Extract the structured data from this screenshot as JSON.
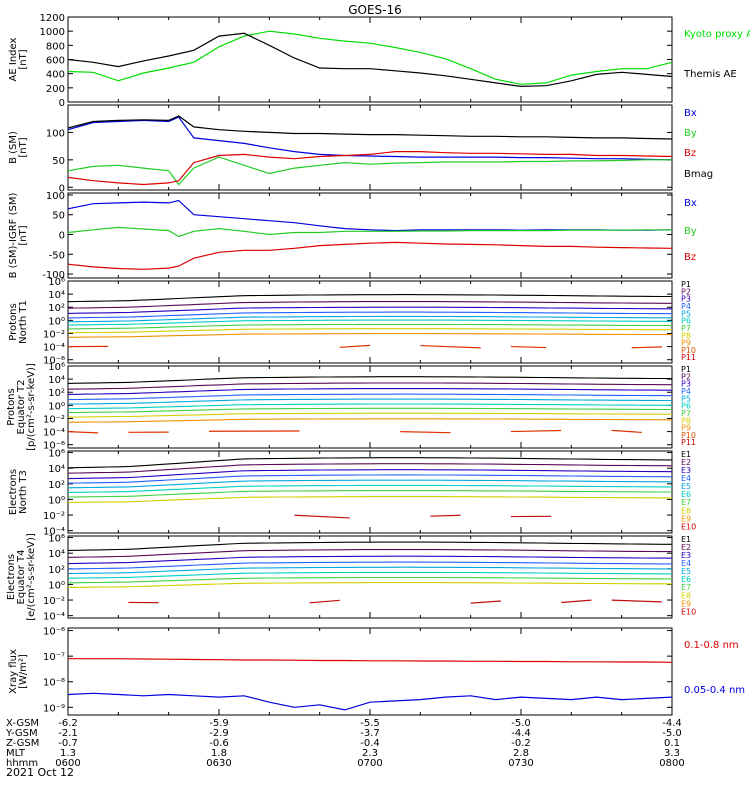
{
  "title": "GOES-16",
  "date_label": "2021 Oct 12",
  "colors": {
    "black": "#000000",
    "green": "#22cc22",
    "blue": "#0000dd",
    "red": "#dd0000",
    "orange": "#e07000",
    "ae_proxy": "#00dd00",
    "xray_long": "#dd0000",
    "xray_short": "#0000dd"
  },
  "orbit": {
    "rows": [
      {
        "label": "X-GSM",
        "values": [
          "-6.2",
          "-5.9",
          "-5.5",
          "-5.0",
          "-4.4"
        ]
      },
      {
        "label": "Y-GSM",
        "values": [
          "-2.1",
          "-2.9",
          "-3.7",
          "-4.4",
          "-5.0"
        ]
      },
      {
        "label": "Z-GSM",
        "values": [
          "-0.7",
          "-0.6",
          "-0.4",
          "-0.2",
          "0.1"
        ]
      },
      {
        "label": "MLT",
        "values": [
          "1.3",
          "1.8",
          "2.3",
          "2.8",
          "3.3"
        ]
      },
      {
        "label": "hhmm",
        "values": [
          "0600",
          "0630",
          "0700",
          "0730",
          "0800"
        ]
      }
    ]
  },
  "chart_data": [
    {
      "id": "ae",
      "type": "line",
      "ylabel": [
        "AE Index",
        "[nT]"
      ],
      "ylim": [
        0,
        1200
      ],
      "yscale": "linear",
      "yticks": [
        0,
        200,
        400,
        600,
        800,
        1000,
        1200
      ],
      "ytick_labels": [
        "0",
        "200",
        "400",
        "600",
        "800",
        "1000",
        "1200"
      ],
      "x": [
        0,
        5,
        10,
        15,
        20,
        25,
        30,
        35,
        40,
        45,
        50,
        55,
        60,
        65,
        70,
        75,
        80,
        85,
        90,
        95,
        100,
        105,
        110,
        115,
        120
      ],
      "series": [
        {
          "name": "Kyoto proxy AE",
          "color_key": "ae_proxy",
          "values": [
            430,
            420,
            300,
            410,
            480,
            560,
            780,
            930,
            1000,
            960,
            900,
            860,
            830,
            770,
            700,
            610,
            470,
            320,
            250,
            270,
            380,
            430,
            470,
            470,
            560
          ]
        },
        {
          "name": "Themis AE",
          "color_key": "black",
          "values": [
            600,
            560,
            500,
            580,
            650,
            730,
            930,
            970,
            800,
            620,
            480,
            470,
            470,
            440,
            410,
            370,
            320,
            270,
            220,
            230,
            300,
            390,
            420,
            390,
            360
          ]
        }
      ],
      "legend": [
        {
          "text": "Kyoto proxy AE",
          "color_key": "ae_proxy"
        },
        {
          "text": "Themis AE",
          "color_key": "black"
        }
      ]
    },
    {
      "id": "bsm",
      "type": "line",
      "ylabel": [
        "B (SM)",
        "[nT]"
      ],
      "ylim": [
        -5,
        150
      ],
      "yscale": "linear",
      "yticks": [
        0,
        50,
        100
      ],
      "ytick_labels": [
        "0",
        "50",
        "100"
      ],
      "x": [
        0,
        5,
        10,
        15,
        20,
        22,
        25,
        30,
        35,
        40,
        45,
        50,
        55,
        60,
        65,
        70,
        75,
        80,
        85,
        90,
        95,
        100,
        105,
        110,
        115,
        120
      ],
      "series": [
        {
          "name": "Bx",
          "color_key": "blue",
          "values": [
            105,
            118,
            120,
            122,
            120,
            128,
            90,
            85,
            80,
            72,
            65,
            60,
            58,
            57,
            56,
            55,
            55,
            55,
            55,
            54,
            54,
            53,
            52,
            52,
            51,
            50
          ]
        },
        {
          "name": "By",
          "color_key": "green",
          "values": [
            30,
            38,
            40,
            35,
            30,
            5,
            35,
            55,
            40,
            25,
            35,
            40,
            45,
            42,
            44,
            45,
            46,
            46,
            46,
            47,
            47,
            48,
            48,
            49,
            50,
            50
          ]
        },
        {
          "name": "Bz",
          "color_key": "red",
          "values": [
            18,
            12,
            8,
            5,
            8,
            12,
            45,
            58,
            60,
            55,
            52,
            56,
            58,
            60,
            65,
            65,
            63,
            62,
            62,
            61,
            60,
            60,
            58,
            58,
            57,
            56
          ]
        },
        {
          "name": "Bmag",
          "color_key": "black",
          "values": [
            108,
            120,
            122,
            123,
            122,
            130,
            110,
            105,
            102,
            100,
            98,
            98,
            97,
            96,
            96,
            95,
            94,
            93,
            93,
            92,
            92,
            91,
            90,
            90,
            89,
            88
          ]
        }
      ],
      "legend": [
        {
          "text": "Bx",
          "color_key": "blue"
        },
        {
          "text": "By",
          "color_key": "green"
        },
        {
          "text": "Bz",
          "color_key": "red"
        },
        {
          "text": "Bmag",
          "color_key": "black"
        }
      ]
    },
    {
      "id": "bigrf",
      "type": "line",
      "ylabel": [
        "B (SM)-IGRF (SM)",
        "[nT]"
      ],
      "ylim": [
        -110,
        105
      ],
      "yscale": "linear",
      "yticks": [
        -100,
        -50,
        0,
        50,
        100
      ],
      "ytick_labels": [
        "-100",
        "-50",
        "0",
        "50",
        "100"
      ],
      "x": [
        0,
        5,
        10,
        15,
        20,
        22,
        25,
        30,
        35,
        40,
        45,
        50,
        55,
        60,
        65,
        70,
        75,
        80,
        85,
        90,
        95,
        100,
        105,
        110,
        115,
        120
      ],
      "series": [
        {
          "name": "Bx",
          "color_key": "blue",
          "values": [
            65,
            78,
            80,
            82,
            80,
            86,
            50,
            45,
            40,
            35,
            30,
            22,
            15,
            12,
            10,
            12,
            12,
            12,
            12,
            11,
            12,
            12,
            12,
            11,
            11,
            12
          ]
        },
        {
          "name": "By",
          "color_key": "green",
          "values": [
            5,
            12,
            18,
            14,
            10,
            -5,
            8,
            15,
            8,
            0,
            5,
            5,
            8,
            8,
            8,
            9,
            9,
            10,
            10,
            10,
            10,
            11,
            11,
            11,
            12,
            12
          ]
        },
        {
          "name": "Bz",
          "color_key": "red",
          "values": [
            -75,
            -82,
            -86,
            -88,
            -85,
            -80,
            -60,
            -45,
            -40,
            -40,
            -35,
            -28,
            -25,
            -22,
            -20,
            -22,
            -24,
            -25,
            -26,
            -28,
            -30,
            -30,
            -32,
            -33,
            -34,
            -35
          ]
        }
      ],
      "legend": [
        {
          "text": "Bx",
          "color_key": "blue"
        },
        {
          "text": "By",
          "color_key": "green"
        },
        {
          "text": "Bz",
          "color_key": "red"
        }
      ]
    },
    {
      "id": "pnorth",
      "type": "line",
      "ylabel": [
        "Protons",
        "North T1"
      ],
      "ylim": [
        -6.5,
        6
      ],
      "yscale": "log",
      "yticks": [
        -6,
        -4,
        -2,
        0,
        2,
        4,
        6
      ],
      "ytick_labels": [
        "10⁻⁶",
        "10⁻⁴",
        "10⁻²",
        "10⁰",
        "10²",
        "10⁴",
        "10⁶"
      ],
      "channels": [
        "P1",
        "P2",
        "P3",
        "P4",
        "P5",
        "P6",
        "P7",
        "P8",
        "P9",
        "P10",
        "P11"
      ],
      "channel_colors": [
        "#000000",
        "#5a0a5a",
        "#2a00c0",
        "#2060ff",
        "#00a8e0",
        "#00d0c0",
        "#40d040",
        "#d0d000",
        "#f09000",
        "#e05000",
        "#d00000"
      ],
      "levels": [
        3,
        2,
        1.2,
        0.5,
        -0.1,
        -0.6,
        -1.2,
        -1.8,
        -2.5
      ],
      "hump": 1.4,
      "segments": {
        "color": "#e03000",
        "level": -4,
        "spans": [
          [
            0,
            8
          ],
          [
            54,
            60
          ],
          [
            70,
            82
          ],
          [
            88,
            95
          ],
          [
            112,
            118
          ]
        ]
      }
    },
    {
      "id": "pequator",
      "type": "line",
      "ylabel": [
        "Protons",
        "Equator T2",
        "[p/(cm²-s-sr-keV)]"
      ],
      "ylim": [
        -6.5,
        6
      ],
      "yscale": "log",
      "yticks": [
        -6,
        -4,
        -2,
        0,
        2,
        4,
        6
      ],
      "ytick_labels": [
        "10⁻⁶",
        "10⁻⁴",
        "10⁻²",
        "10⁰",
        "10²",
        "10⁴",
        "10⁶"
      ],
      "channels": [
        "P1",
        "P2",
        "P3",
        "P4",
        "P5",
        "P6",
        "P7",
        "P8",
        "P9",
        "P10",
        "P11"
      ],
      "channel_colors": [
        "#000000",
        "#5a0a5a",
        "#2a00c0",
        "#2060ff",
        "#00a8e0",
        "#00d0c0",
        "#40d040",
        "#d0d000",
        "#f09000",
        "#e05000",
        "#d00000"
      ],
      "levels": [
        3.5,
        2.6,
        1.8,
        1.0,
        0.3,
        -0.4,
        -1.0,
        -1.7,
        -2.5
      ],
      "hump": 1.3,
      "segments": {
        "color": "#e03000",
        "level": -4,
        "spans": [
          [
            0,
            6
          ],
          [
            12,
            20
          ],
          [
            28,
            46
          ],
          [
            66,
            76
          ],
          [
            88,
            98
          ],
          [
            108,
            114
          ]
        ]
      }
    },
    {
      "id": "enorth",
      "type": "line",
      "ylabel": [
        "Electrons",
        "North T3"
      ],
      "ylim": [
        -4.3,
        6.2
      ],
      "yscale": "log",
      "yticks": [
        -4,
        -2,
        0,
        2,
        4,
        6
      ],
      "ytick_labels": [
        "10⁻⁴",
        "10⁻²",
        "10⁰",
        "10²",
        "10⁴",
        "10⁶"
      ],
      "channels": [
        "E1",
        "E2",
        "E3",
        "E4",
        "E5",
        "E6",
        "E7",
        "E8",
        "E9",
        "E10"
      ],
      "channel_colors": [
        "#000000",
        "#5a0a5a",
        "#2a00c0",
        "#2060ff",
        "#00a8e0",
        "#00d0c0",
        "#40d040",
        "#d0d000",
        "#f09000",
        "#d00000"
      ],
      "levels": [
        4.2,
        3.5,
        2.8,
        2.2,
        1.6,
        1.0,
        0.4,
        -0.3
      ],
      "hump": 1.8,
      "segments": {
        "color": "#c01010",
        "level": -2.2,
        "spans": [
          [
            45,
            56
          ],
          [
            72,
            78
          ],
          [
            88,
            96
          ]
        ]
      }
    },
    {
      "id": "eequator",
      "type": "line",
      "ylabel": [
        "Electrons",
        "Equator T4",
        "[e/(cm²-s-sr-keV)]"
      ],
      "ylim": [
        -4.3,
        6.2
      ],
      "yscale": "log",
      "yticks": [
        -4,
        -2,
        0,
        2,
        4,
        6
      ],
      "ytick_labels": [
        "10⁻⁴",
        "10⁻²",
        "10⁰",
        "10²",
        "10⁴",
        "10⁶"
      ],
      "channels": [
        "E1",
        "E2",
        "E3",
        "E4",
        "E5",
        "E6",
        "E7",
        "E8",
        "E9",
        "E10"
      ],
      "channel_colors": [
        "#000000",
        "#5a0a5a",
        "#2a00c0",
        "#2060ff",
        "#00a8e0",
        "#00d0c0",
        "#40d040",
        "#d0d000",
        "#f09000",
        "#d00000"
      ],
      "levels": [
        4.5,
        3.6,
        2.8,
        2.1,
        1.5,
        0.9,
        0.3,
        -0.3
      ],
      "hump": 1.4,
      "segments": {
        "color": "#c01010",
        "level": -2.2,
        "spans": [
          [
            12,
            18
          ],
          [
            48,
            54
          ],
          [
            80,
            86
          ],
          [
            98,
            104
          ],
          [
            108,
            118
          ]
        ]
      }
    },
    {
      "id": "xray",
      "type": "line",
      "ylabel": [
        "Xray flux",
        "[W/m²]"
      ],
      "ylim": [
        -9.3,
        -5.9
      ],
      "yscale": "log",
      "yticks": [
        -9,
        -8,
        -7,
        -6
      ],
      "ytick_labels": [
        "10⁻⁹",
        "10⁻⁸",
        "10⁻⁷",
        "10⁻⁶"
      ],
      "x": [
        0,
        5,
        10,
        15,
        20,
        25,
        30,
        35,
        40,
        45,
        50,
        55,
        60,
        65,
        70,
        75,
        80,
        85,
        90,
        95,
        100,
        105,
        110,
        115,
        120
      ],
      "series": [
        {
          "name": "0.1-0.8 nm",
          "color_key": "xray_long",
          "values": [
            -7.1,
            -7.1,
            -7.1,
            -7.11,
            -7.12,
            -7.13,
            -7.14,
            -7.15,
            -7.15,
            -7.16,
            -7.17,
            -7.17,
            -7.18,
            -7.18,
            -7.19,
            -7.19,
            -7.2,
            -7.2,
            -7.21,
            -7.21,
            -7.22,
            -7.22,
            -7.23,
            -7.23,
            -7.24
          ]
        },
        {
          "name": "0.05-0.4 nm",
          "color_key": "xray_short",
          "values": [
            -8.5,
            -8.45,
            -8.5,
            -8.55,
            -8.5,
            -8.55,
            -8.6,
            -8.55,
            -8.8,
            -9.0,
            -8.9,
            -9.1,
            -8.8,
            -8.75,
            -8.7,
            -8.6,
            -8.55,
            -8.7,
            -8.6,
            -8.65,
            -8.7,
            -8.6,
            -8.7,
            -8.65,
            -8.6
          ]
        }
      ],
      "legend": [
        {
          "text": "0.1-0.8 nm",
          "color_key": "xray_long"
        },
        {
          "text": "0.05-0.4 nm",
          "color_key": "xray_short"
        }
      ]
    }
  ]
}
